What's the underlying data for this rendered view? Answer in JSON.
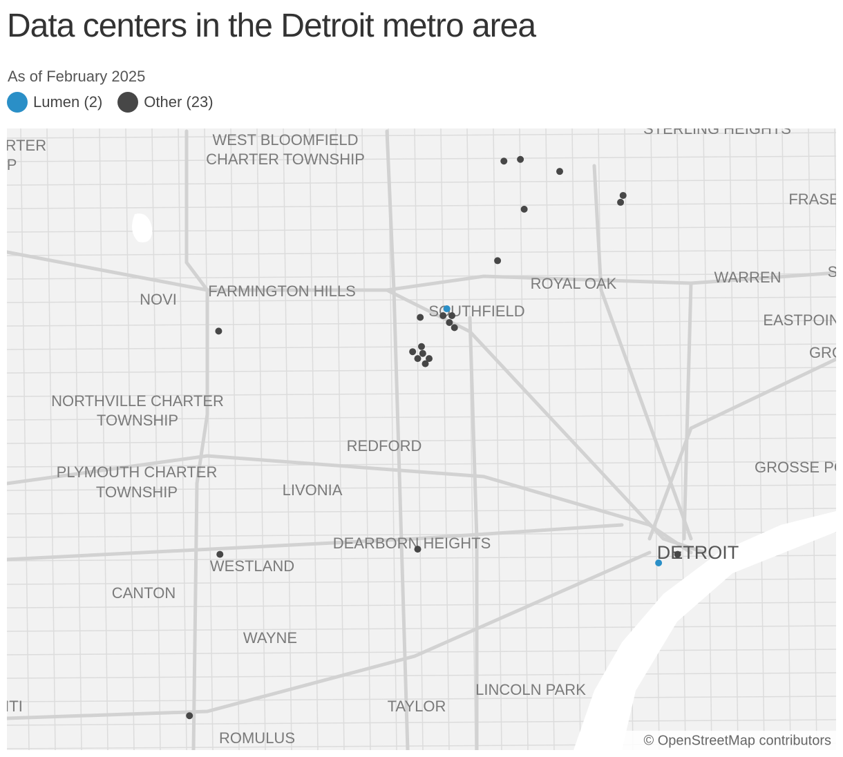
{
  "header": {
    "title": "Data centers in the Detroit metro area",
    "subtitle": "As of February 2025"
  },
  "map": {
    "lonlim": [
      -83.595,
      -82.941
    ],
    "latlim": [
      42.218,
      42.58
    ],
    "series": [
      {
        "name": "Lumen (2)",
        "color": "#2a8fc7",
        "points": [
          [
            -83.248,
            42.475
          ],
          [
            -83.081,
            42.327
          ]
        ]
      },
      {
        "name": "Other (23)",
        "color": "#474747",
        "points": [
          [
            -83.203,
            42.561
          ],
          [
            -83.19,
            42.562
          ],
          [
            -83.159,
            42.555
          ],
          [
            -83.109,
            42.541
          ],
          [
            -83.111,
            42.537
          ],
          [
            -83.187,
            42.533
          ],
          [
            -83.208,
            42.503
          ],
          [
            -83.269,
            42.47
          ],
          [
            -83.251,
            42.471
          ],
          [
            -83.244,
            42.471
          ],
          [
            -83.246,
            42.467
          ],
          [
            -83.242,
            42.464
          ],
          [
            -83.268,
            42.453
          ],
          [
            -83.275,
            42.45
          ],
          [
            -83.267,
            42.449
          ],
          [
            -83.271,
            42.446
          ],
          [
            -83.262,
            42.446
          ],
          [
            -83.265,
            42.443
          ],
          [
            -83.428,
            42.462
          ],
          [
            -83.427,
            42.332
          ],
          [
            -83.271,
            42.335
          ],
          [
            -83.066,
            42.332
          ],
          [
            -83.451,
            42.238
          ]
        ]
      }
    ],
    "places": [
      "ARTER",
      "IP",
      "WEST BLOOMFIELD",
      "CHARTER TOWNSHIP",
      "STERLING HEIGHTS",
      "FRASE",
      "S",
      "ROYAL OAK",
      "WARREN",
      "NOVI",
      "FARMINGTON HILLS",
      "SOUTHFIELD",
      "EASTPOIN",
      "GRO",
      "NORTHVILLE CHARTER",
      "TOWNSHIP",
      "REDFORD",
      "GROSSE PO",
      "PLYMOUTH CHARTER",
      "TOWNSHIP",
      "LIVONIA",
      "DEARBORN HEIGHTS",
      "DETROIT",
      "WESTLAND",
      "CANTON",
      "WAYNE",
      "LINCOLN PARK",
      "TAYLOR",
      "ITI",
      "ROMULUS"
    ],
    "attribution": "© OpenStreetMap contributors"
  }
}
